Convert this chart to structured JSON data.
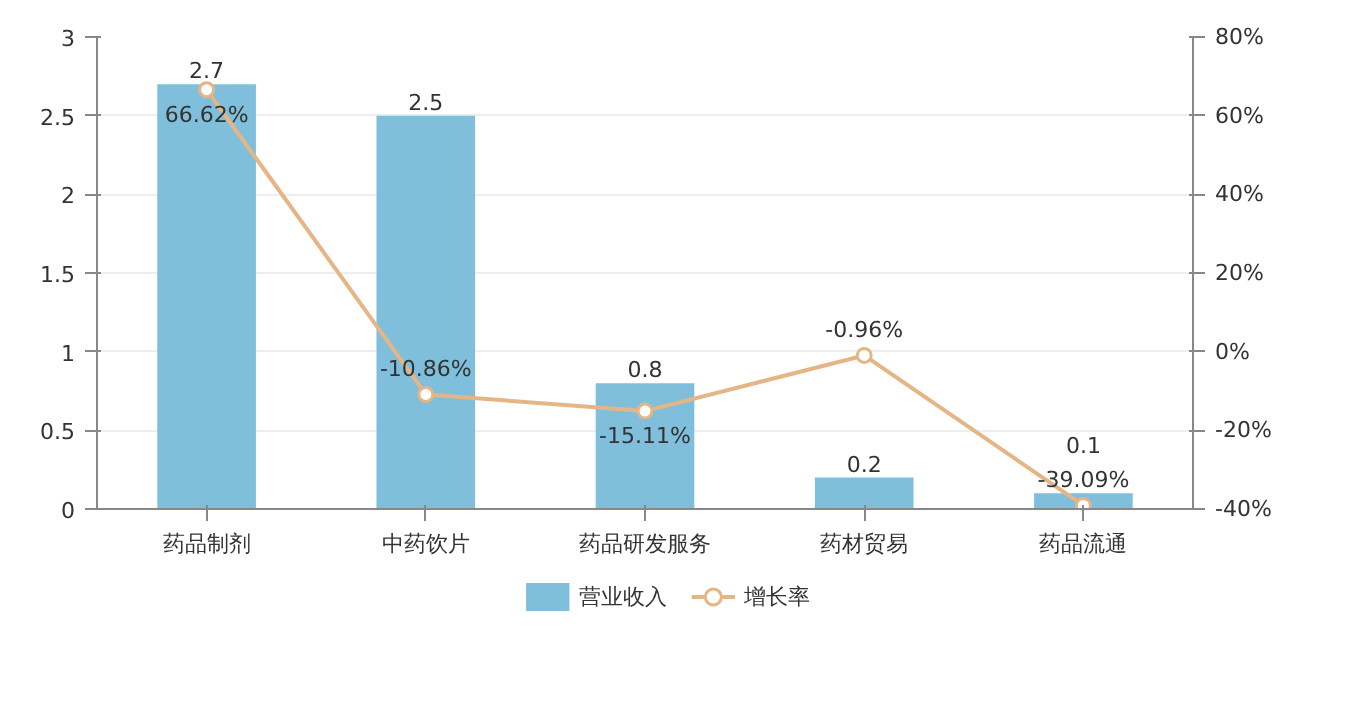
{
  "chart_data": {
    "type": "bar",
    "categories": [
      "药品制剂",
      "中药饮片",
      "药品研发服务",
      "药材贸易",
      "药品流通"
    ],
    "series": [
      {
        "name": "营业收入",
        "color": "#7fbfdb",
        "values": [
          2.7,
          2.5,
          0.8,
          0.2,
          0.1
        ],
        "data_labels": true
      },
      {
        "name": "增长率",
        "type": "line",
        "axis": "y2",
        "color": "#e5b585",
        "marker": "circle",
        "values": [
          66.62,
          -10.86,
          -15.11,
          -0.96,
          -39.09
        ],
        "value_labels": [
          "66.62%",
          "-10.86%",
          "-15.11%",
          "-0.96%",
          "-39.09%"
        ]
      }
    ],
    "ylim": [
      0,
      3
    ],
    "yticks": [
      0,
      0.5,
      1,
      1.5,
      2,
      2.5,
      3
    ],
    "y2lim": [
      -40,
      80
    ],
    "y2ticks": [
      {
        "value": -40,
        "label": "-40%"
      },
      {
        "value": -20,
        "label": "-20%"
      },
      {
        "value": 0,
        "label": "0%"
      },
      {
        "value": 20,
        "label": "20%"
      },
      {
        "value": 40,
        "label": "40%"
      },
      {
        "value": 60,
        "label": "60%"
      },
      {
        "value": 80,
        "label": "80%"
      }
    ],
    "grid": "y",
    "legend": "bottom"
  }
}
